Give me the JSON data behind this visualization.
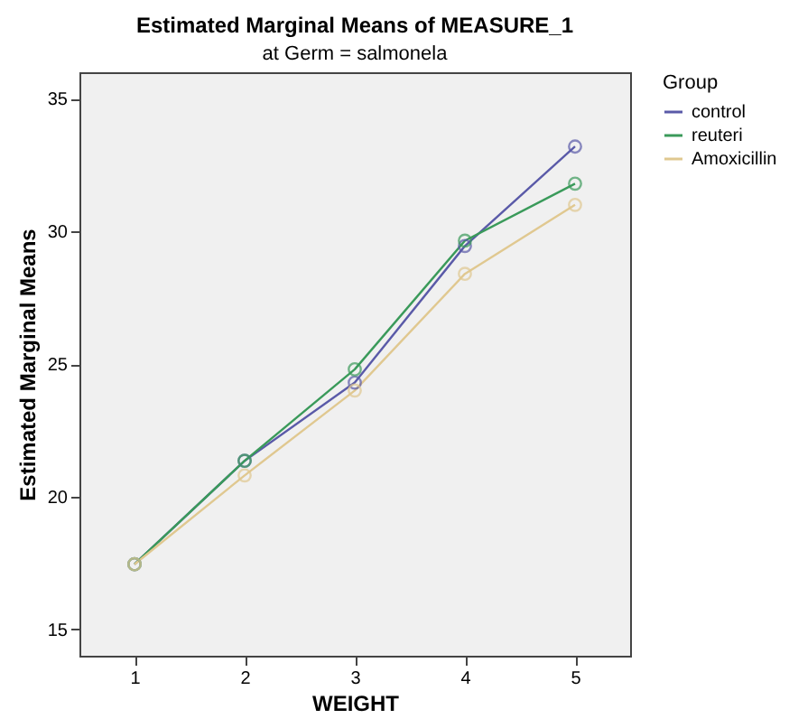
{
  "chart_data": {
    "type": "line",
    "title": "Estimated Marginal Means of MEASURE_1",
    "subtitle": "at Germ = salmonela",
    "xlabel": "WEIGHT",
    "ylabel": "Estimated Marginal Means",
    "legend_title": "Group",
    "categories": [
      "1",
      "2",
      "3",
      "4",
      "5"
    ],
    "series": [
      {
        "name": "control",
        "color": "#5a5aa8",
        "values": [
          17.45,
          21.35,
          24.3,
          29.45,
          33.2
        ]
      },
      {
        "name": "reuteri",
        "color": "#3a9a5a",
        "values": [
          17.45,
          21.35,
          24.8,
          29.65,
          31.8
        ]
      },
      {
        "name": "Amoxicillin",
        "color": "#e0c890",
        "values": [
          17.45,
          20.8,
          24.0,
          28.4,
          31.0
        ]
      }
    ],
    "ylim": [
      14,
      36
    ],
    "yticks": [
      15,
      20,
      25,
      30,
      35
    ],
    "grid": false,
    "legend": "top right",
    "marker": "circle",
    "line_style": "solid"
  }
}
